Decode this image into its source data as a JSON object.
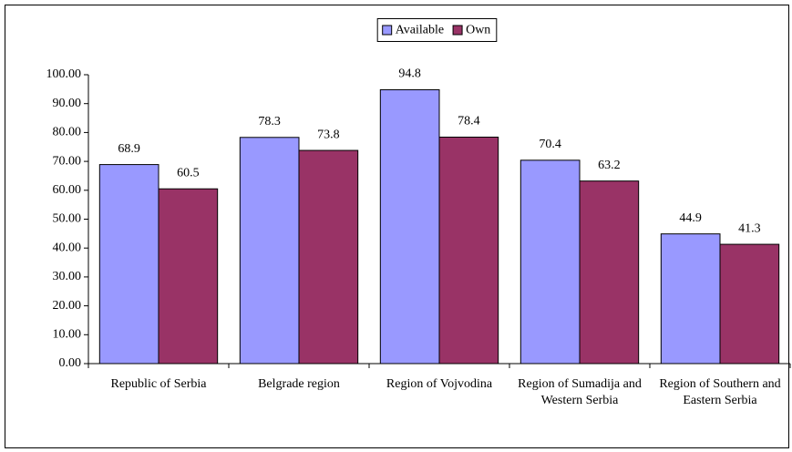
{
  "chart_data": {
    "type": "bar",
    "categories": [
      "Republic of Serbia",
      "Belgrade region",
      "Region of Vojvodina",
      "Region of Sumadija and Western Serbia",
      "Region of Southern and Eastern Serbia"
    ],
    "series": [
      {
        "name": "Available",
        "color": "#9999ff",
        "values": [
          68.9,
          78.3,
          94.8,
          70.4,
          44.9
        ]
      },
      {
        "name": "Own",
        "color": "#993366",
        "values": [
          60.5,
          73.8,
          78.4,
          63.2,
          41.3
        ]
      }
    ],
    "ylim": [
      0,
      100
    ],
    "yticks": [
      {
        "value": 0,
        "label": "0.00"
      },
      {
        "value": 10,
        "label": "10.00"
      },
      {
        "value": 20,
        "label": "20.00"
      },
      {
        "value": 30,
        "label": "30.00"
      },
      {
        "value": 40,
        "label": "40.00"
      },
      {
        "value": 50,
        "label": "50.00"
      },
      {
        "value": 60,
        "label": "60.00"
      },
      {
        "value": 70,
        "label": "70.00"
      },
      {
        "value": 80,
        "label": "80.00"
      },
      {
        "value": 90,
        "label": "90.00"
      },
      {
        "value": 100,
        "label": "100.00"
      }
    ],
    "legend": "top"
  }
}
